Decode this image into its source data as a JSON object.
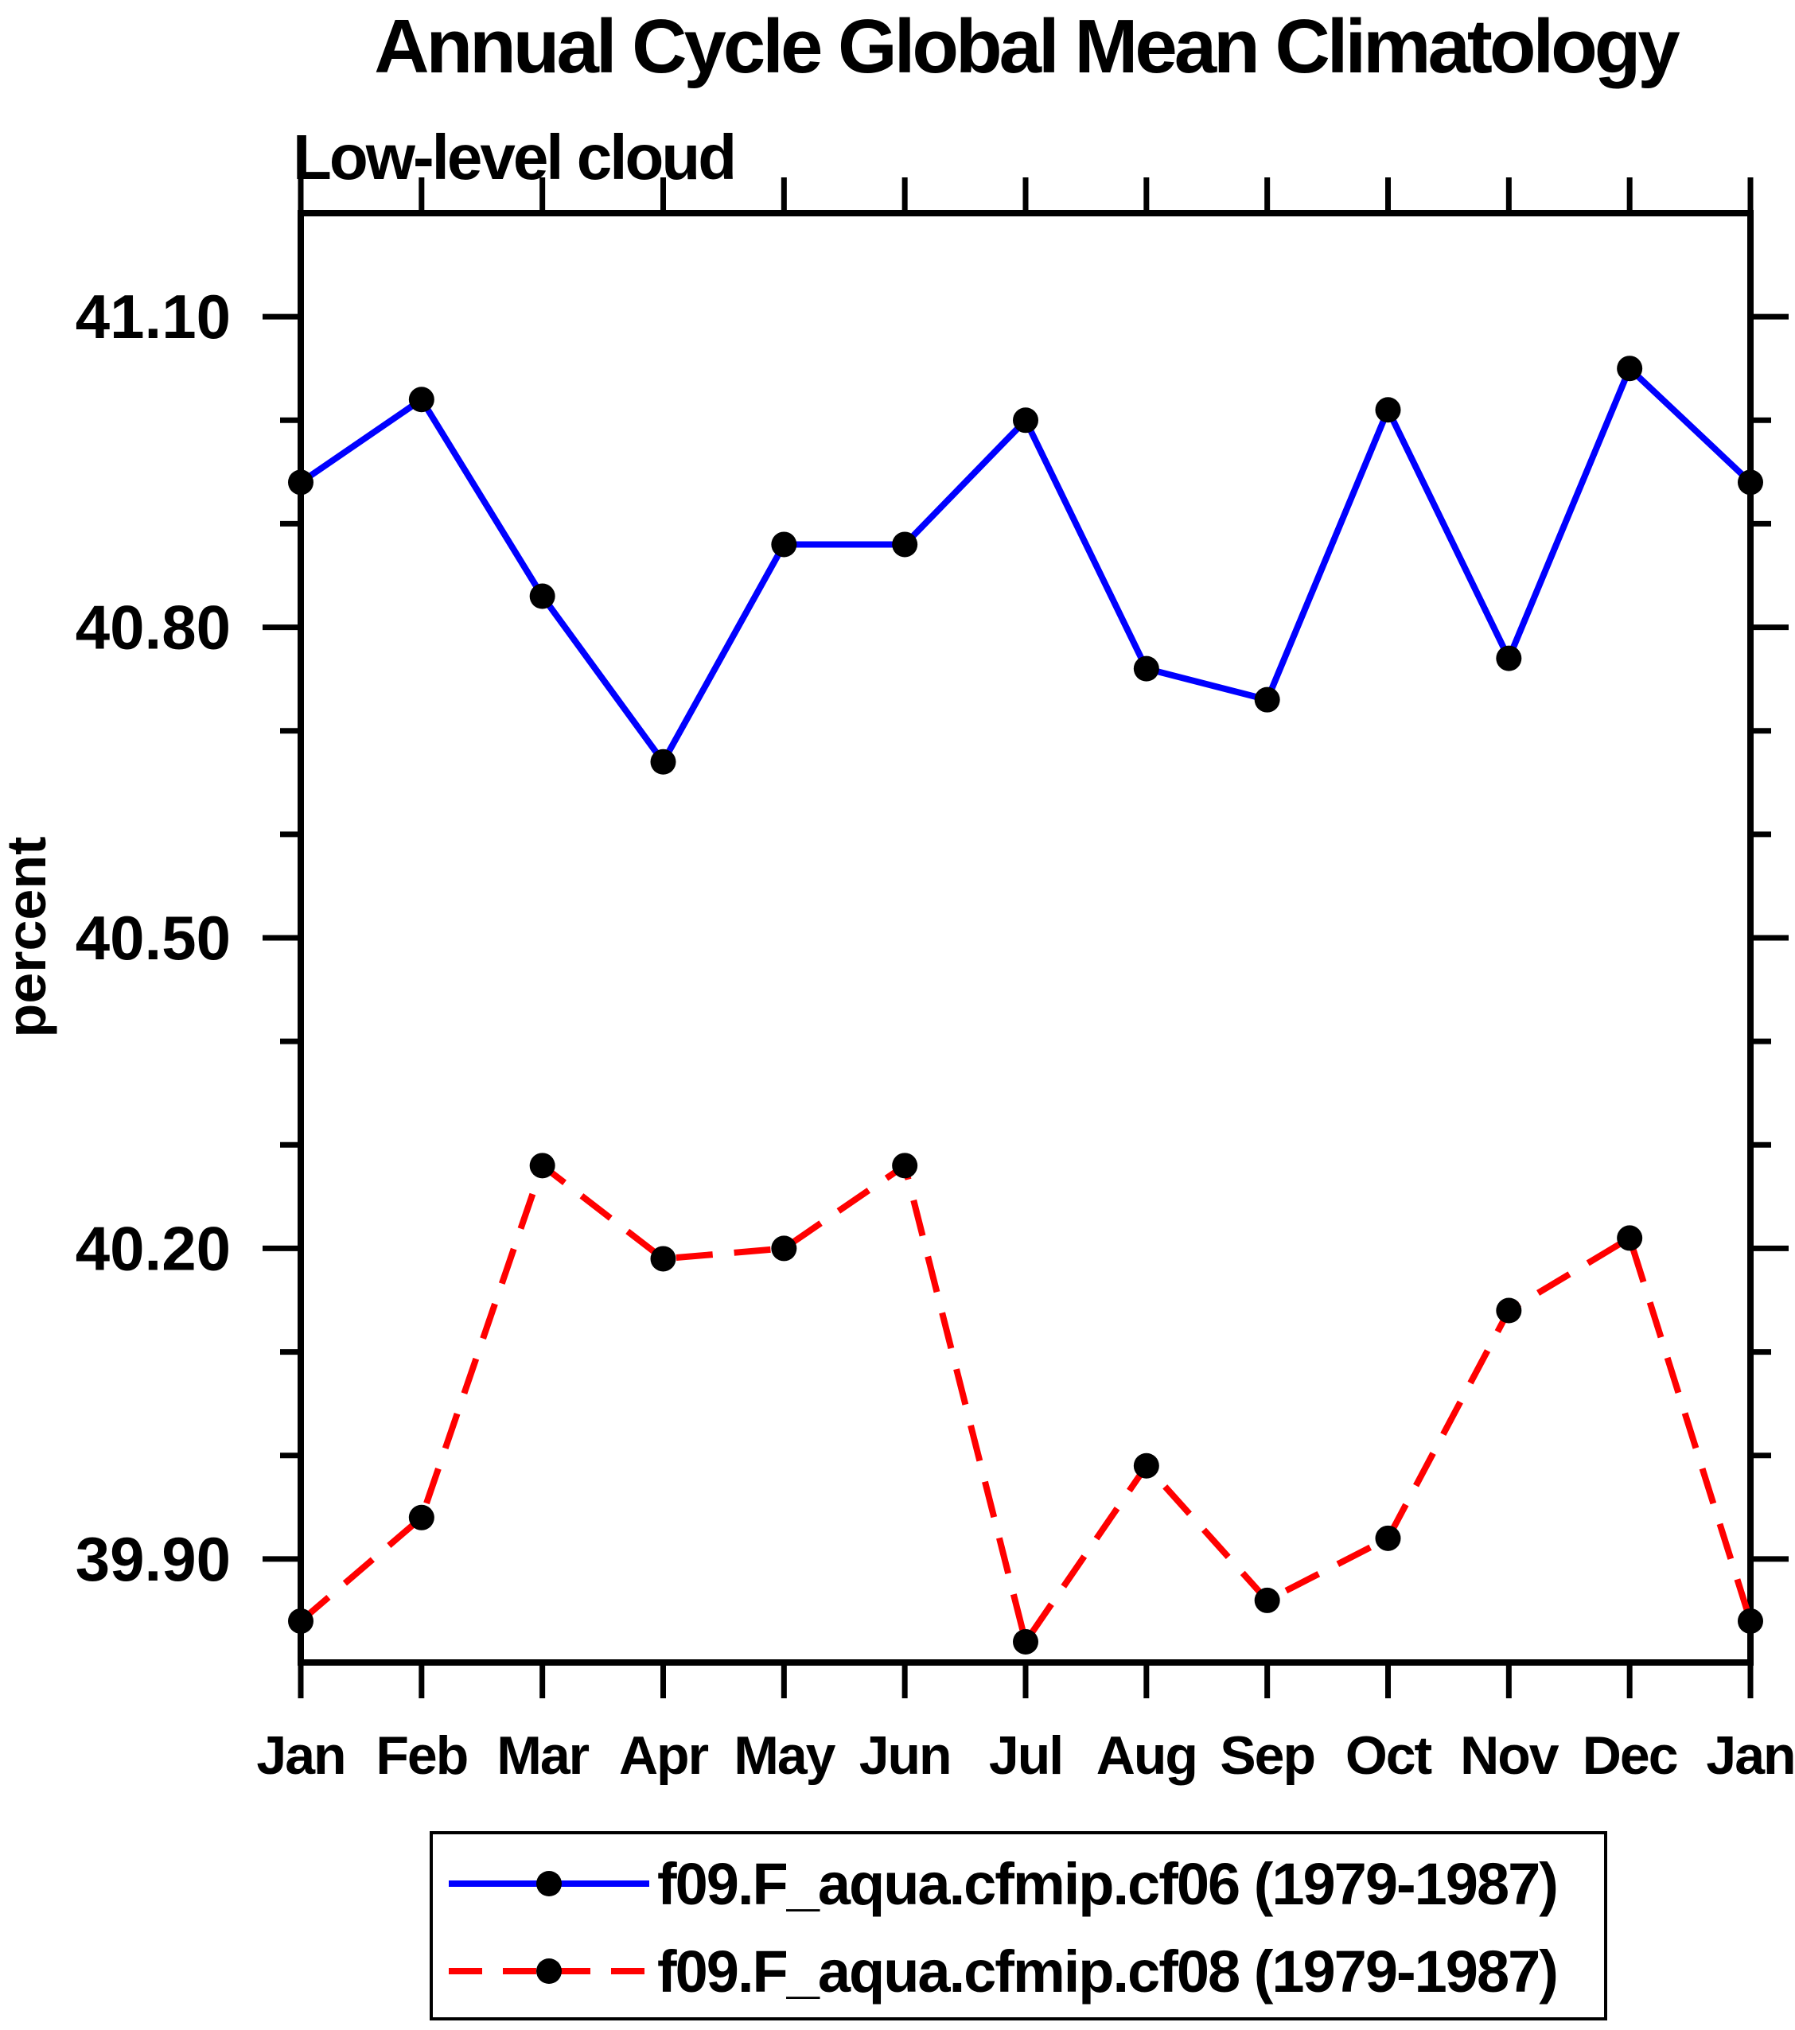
{
  "title": "Annual Cycle Global Mean Climatology",
  "subtitle": "Low-level cloud",
  "y_axis": {
    "label": "percent",
    "tick_labels": [
      "39.90",
      "40.20",
      "40.50",
      "40.80",
      "41.10"
    ]
  },
  "x_axis": {
    "tick_labels": [
      "Jan",
      "Feb",
      "Mar",
      "Apr",
      "May",
      "Jun",
      "Jul",
      "Aug",
      "Sep",
      "Oct",
      "Nov",
      "Dec",
      "Jan"
    ]
  },
  "legend": [
    {
      "label": "f09.F_aqua.cfmip.cf06 (1979-1987)",
      "color": "#0000FF",
      "line_style": "solid",
      "marker": "filled-circle"
    },
    {
      "label": "f09.F_aqua.cfmip.cf08 (1979-1987)",
      "color": "#FF0000",
      "line_style": "dashed",
      "marker": "filled-circle"
    }
  ],
  "colors": {
    "axis": "#000000",
    "marker": "#000000",
    "background": "#FFFFFF",
    "series_cf06": "#0000FF",
    "series_cf08": "#FF0000"
  },
  "chart_data": {
    "type": "line",
    "title": "Annual Cycle Global Mean Climatology",
    "subtitle": "Low-level cloud",
    "xlabel": "",
    "ylabel": "percent",
    "x": [
      "Jan",
      "Feb",
      "Mar",
      "Apr",
      "May",
      "Jun",
      "Jul",
      "Aug",
      "Sep",
      "Oct",
      "Nov",
      "Dec",
      "Jan"
    ],
    "series": [
      {
        "name": "f09.F_aqua.cfmip.cf06 (1979-1987)",
        "color": "#0000FF",
        "line_style": "solid",
        "marker": "filled-circle",
        "values": [
          40.94,
          41.02,
          40.83,
          40.67,
          40.88,
          40.88,
          41.0,
          40.76,
          40.73,
          41.01,
          40.77,
          41.05,
          40.94
        ]
      },
      {
        "name": "f09.F_aqua.cfmip.cf08 (1979-1987)",
        "color": "#FF0000",
        "line_style": "dashed",
        "marker": "filled-circle",
        "values": [
          39.84,
          39.94,
          40.28,
          40.19,
          40.2,
          40.28,
          39.82,
          39.99,
          39.86,
          39.92,
          40.14,
          40.21,
          39.84
        ]
      }
    ],
    "ylim": [
      39.8,
      41.2
    ],
    "y_major_ticks": [
      39.9,
      40.2,
      40.5,
      40.8,
      41.1
    ],
    "y_minor_step": 0.1,
    "grid": false,
    "legend_position": "bottom"
  }
}
